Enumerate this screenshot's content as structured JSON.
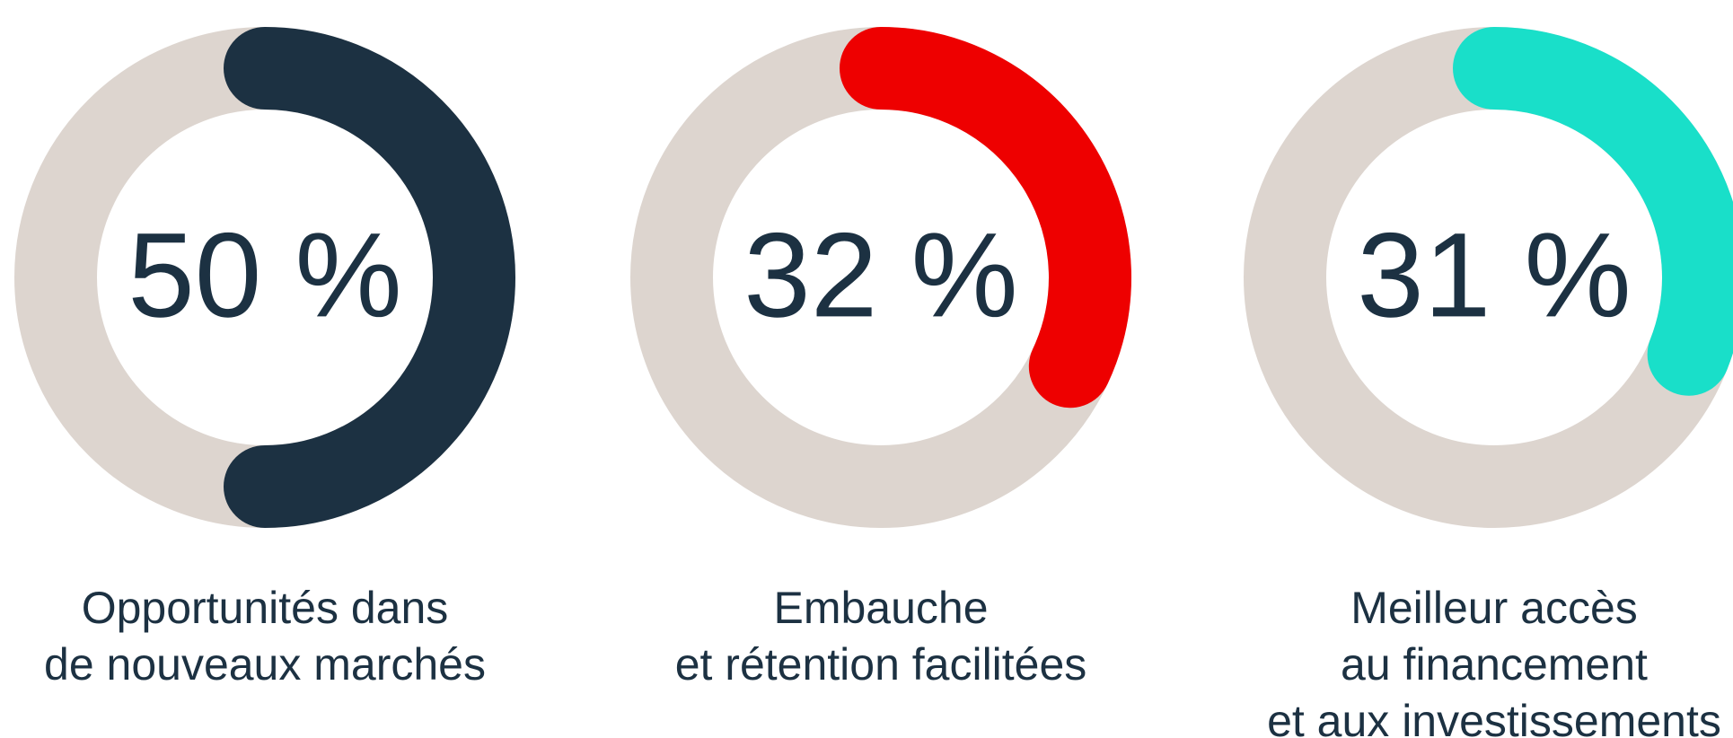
{
  "chart_data": [
    {
      "type": "donut",
      "values": [
        50
      ],
      "value_labels": [
        "50 %"
      ],
      "label_lines": [
        "Opportunités dans",
        "de nouveaux marchés"
      ],
      "color": "#1c3142",
      "track_color": "#ddd5cf"
    },
    {
      "type": "donut",
      "values": [
        32
      ],
      "value_labels": [
        "32 %"
      ],
      "label_lines": [
        "Embauche",
        "et rétention facilitées"
      ],
      "color": "#ee0000",
      "track_color": "#ddd5cf"
    },
    {
      "type": "donut",
      "values": [
        31
      ],
      "value_labels": [
        "31 %"
      ],
      "label_lines": [
        "Meilleur accès",
        "au financement",
        "et aux investissements"
      ],
      "color": "#19dfc9",
      "track_color": "#ddd5cf"
    }
  ]
}
